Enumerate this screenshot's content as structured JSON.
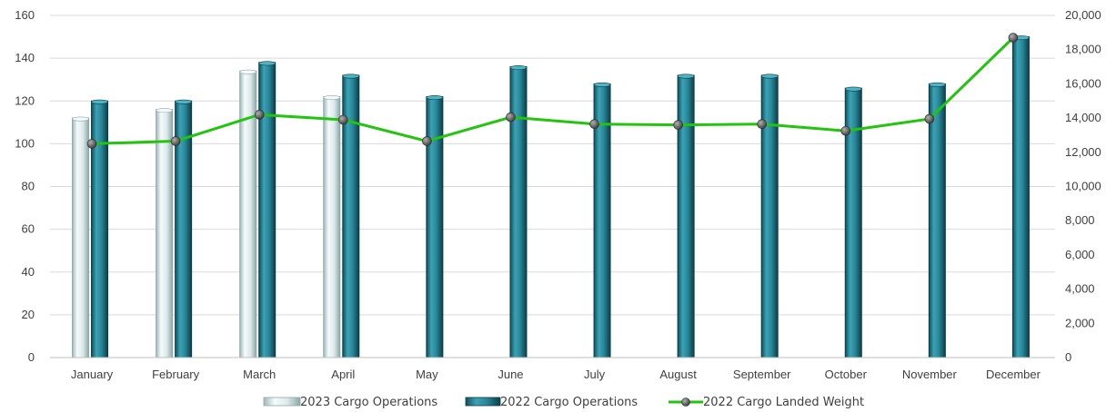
{
  "chart_data": {
    "type": "bar",
    "categories": [
      "January",
      "February",
      "March",
      "April",
      "May",
      "June",
      "July",
      "August",
      "September",
      "October",
      "November",
      "December"
    ],
    "series": [
      {
        "name": "2023 Cargo Operations",
        "type": "bar",
        "axis": "left",
        "color": "#dbe9ea",
        "values": [
          112,
          116,
          134,
          122,
          null,
          null,
          null,
          null,
          null,
          null,
          null,
          null
        ]
      },
      {
        "name": "2022 Cargo Operations",
        "type": "bar",
        "axis": "left",
        "color": "#2f8a9c",
        "values": [
          120,
          120,
          138,
          132,
          122,
          136,
          128,
          132,
          132,
          126,
          128,
          150
        ]
      },
      {
        "name": "2022 Cargo Landed Weight",
        "type": "line",
        "axis": "right",
        "color": "#22c40e",
        "values": [
          12500,
          12650,
          14200,
          13900,
          12650,
          14050,
          13650,
          13600,
          13650,
          13250,
          13950,
          18700
        ]
      }
    ],
    "y_left": {
      "min": 0,
      "max": 160,
      "ticks": [
        "0",
        "20",
        "40",
        "60",
        "80",
        "100",
        "120",
        "140",
        "160"
      ]
    },
    "y_right": {
      "min": 0,
      "max": 20000,
      "ticks": [
        "0",
        "2,000",
        "4,000",
        "6,000",
        "8,000",
        "10,000",
        "12,000",
        "14,000",
        "16,000",
        "18,000",
        "20,000"
      ]
    },
    "grid": true,
    "legend": "bottom"
  }
}
